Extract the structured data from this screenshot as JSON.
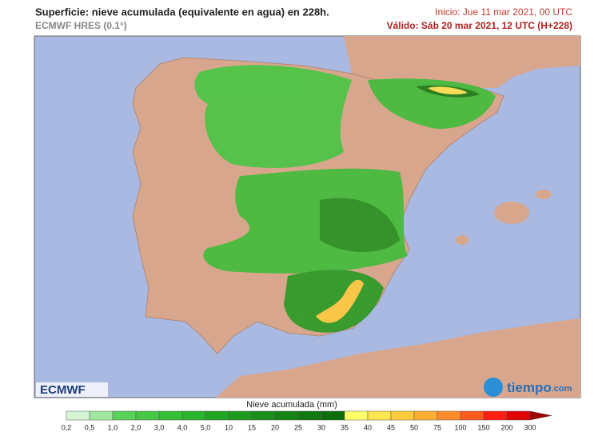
{
  "header": {
    "title": "Superficie: nieve acumulada (equivalente en agua) en 228h.",
    "model": "ECMWF HRES (0.1°)",
    "init": "Inicio: Jue 11 mar 2021, 00 UTC",
    "valid": "Válido: Sáb 20 mar 2021, 12 UTC (H+228)"
  },
  "logos": {
    "left": "ECMWF",
    "right": "tiempo",
    "right_suffix": ".com"
  },
  "legend": {
    "title": "Nieve acumulada (mm)",
    "ticks": [
      "0,2",
      "0,5",
      "1,0",
      "2,0",
      "3,0",
      "4,0",
      "5,0",
      "10",
      "15",
      "20",
      "25",
      "30",
      "35",
      "40",
      "45",
      "50",
      "75",
      "100",
      "150",
      "200",
      "300"
    ],
    "colors": [
      "#d4f5d4",
      "#a0e8a0",
      "#5ad25a",
      "#46c846",
      "#36be36",
      "#2cb42c",
      "#22a522",
      "#1e9a1e",
      "#1a8f1a",
      "#158415",
      "#107a10",
      "#0b6e0b",
      "#ffff66",
      "#ffe64f",
      "#ffcc3c",
      "#ffad33",
      "#ff8c28",
      "#ff5a1e",
      "#ff1e14",
      "#e00000",
      "#a00000"
    ]
  }
}
